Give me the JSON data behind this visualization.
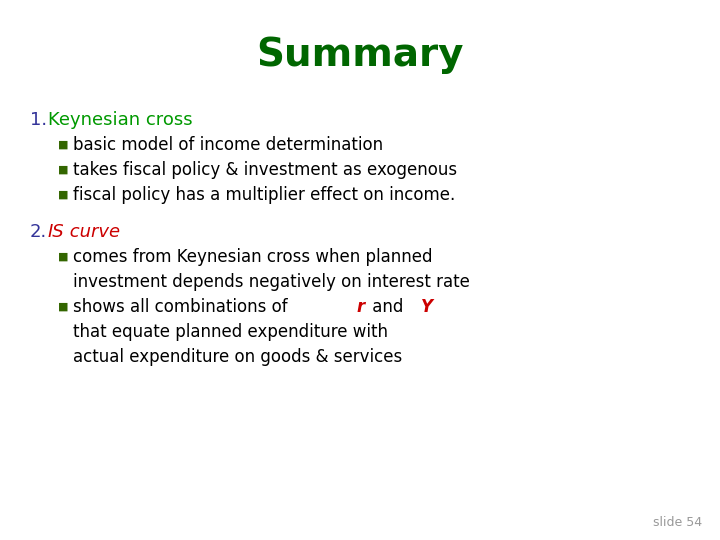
{
  "title": "Summary",
  "title_color": "#006600",
  "title_fontsize": 28,
  "background_color": "#ffffff",
  "slide_number": "slide 54",
  "slide_number_color": "#999999",
  "slide_number_fontsize": 9,
  "number_color": "#333399",
  "number_fontsize": 13,
  "heading1_text": "Keynesian cross",
  "heading1_color": "#009900",
  "heading1_fontsize": 13,
  "heading2_IS_color": "#cc0000",
  "heading2_curve_color": "#cc0000",
  "heading2_fontsize": 13,
  "bullet_color": "#336600",
  "bullet_fontsize": 8,
  "body_color": "#000000",
  "body_fontsize": 12,
  "r_color": "#cc0000",
  "Y_color": "#cc0000",
  "bullet_char": "■",
  "bullets_sec1": [
    "basic model of income determination",
    "takes fiscal policy & investment as exogenous",
    "fiscal policy has a multiplier effect on income."
  ],
  "sec2_bullet1_line1": "comes from Keynesian cross when planned",
  "sec2_bullet1_line2": "investment depends negatively on interest rate",
  "sec2_bullet2_pre": "shows all combinations of ",
  "sec2_bullet2_r": "r",
  "sec2_bullet2_mid": " and ",
  "sec2_bullet2_Y": "Y",
  "sec2_bullet2_line2": "that equate planned expenditure with",
  "sec2_bullet2_line3": "actual expenditure on goods & services"
}
